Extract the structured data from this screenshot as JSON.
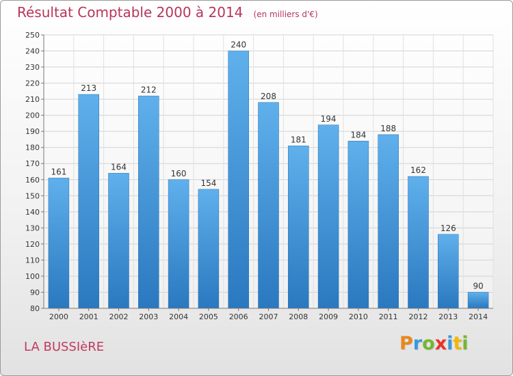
{
  "chart_data": {
    "type": "bar",
    "title": "Résultat Comptable 2000 à 2014",
    "subtitle": "(en milliers d'€)",
    "categories": [
      "2000",
      "2001",
      "2002",
      "2003",
      "2004",
      "2005",
      "2006",
      "2007",
      "2008",
      "2009",
      "2010",
      "2011",
      "2012",
      "2013",
      "2014"
    ],
    "values": [
      161,
      213,
      164,
      212,
      160,
      154,
      240,
      208,
      181,
      194,
      184,
      188,
      162,
      126,
      90
    ],
    "ylim": [
      80,
      250
    ],
    "yticks": [
      80,
      90,
      100,
      110,
      120,
      130,
      140,
      150,
      160,
      170,
      180,
      190,
      200,
      210,
      220,
      230,
      240,
      250
    ],
    "grid": true,
    "legend": "none",
    "bar_color": "#3a8ed8"
  },
  "footer": {
    "commune": "LA BUSSIèRE",
    "logo_letters": [
      {
        "ch": "P",
        "color": "#e8871e"
      },
      {
        "ch": "r",
        "color": "#3a9ad9"
      },
      {
        "ch": "o",
        "color": "#74b72e"
      },
      {
        "ch": "x",
        "color": "#e8332a"
      },
      {
        "ch": "i",
        "color": "#3a9ad9"
      },
      {
        "ch": "t",
        "color": "#f2b705"
      },
      {
        "ch": "i",
        "color": "#74b72e"
      }
    ]
  }
}
